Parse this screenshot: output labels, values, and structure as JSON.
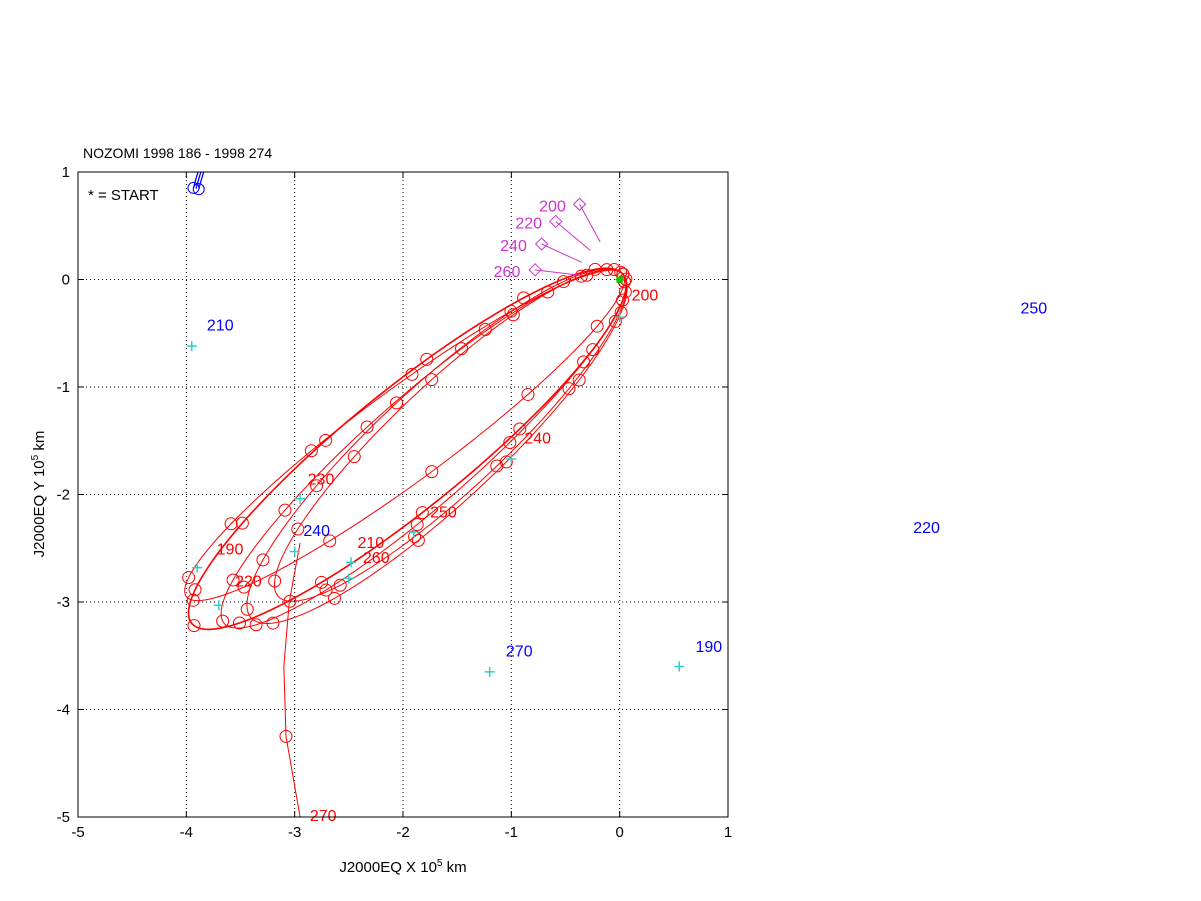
{
  "chart_data": {
    "type": "line",
    "title": "NOZOMI 1998 186 - 1998 274",
    "legend_note": "* = START",
    "xlabel": {
      "prefix": "J2000EQ X 10",
      "exp": "5",
      "suffix": " km"
    },
    "ylabel": {
      "prefix": "J2000EQ Y 10",
      "exp": "5",
      "suffix": " km"
    },
    "xlim": [
      -5,
      1
    ],
    "ylim": [
      -5,
      1
    ],
    "xticks": [
      -5,
      -4,
      -3,
      -2,
      -1,
      0,
      1
    ],
    "yticks": [
      -5,
      -4,
      -3,
      -2,
      -1,
      0,
      1
    ],
    "grid": true,
    "colors": {
      "spacecraft": "#ff0000",
      "moon": "#0000ff",
      "sun_dir": "#cc33cc",
      "marker": "#33cccc",
      "start": "#00cc00"
    },
    "moon_orbit": {
      "center": [
        -0.15,
        -0.05
      ],
      "radius_x": 3.85,
      "radius_y": 3.68,
      "start_deg": 166,
      "end_deg": -20,
      "laps": 3
    },
    "spacecraft_orbits": [
      {
        "apogee": [
          -4.0,
          -2.95
        ],
        "semi_minor": 0.42
      },
      {
        "apogee": [
          -3.95,
          -3.2
        ],
        "semi_minor": 0.55
      },
      {
        "apogee": [
          -3.65,
          -3.2
        ],
        "semi_minor": 0.5
      },
      {
        "apogee": [
          -3.4,
          -3.15
        ],
        "semi_minor": 0.55
      },
      {
        "apogee": [
          -3.15,
          -2.95
        ],
        "semi_minor": 0.5
      }
    ],
    "perigee": [
      0.03,
      0.05
    ],
    "escape_path": {
      "x": [
        -2.95,
        -3.05,
        -3.1,
        -3.08,
        -2.95
      ],
      "y": [
        -2.45,
        -3.0,
        -3.6,
        -4.25,
        -5.0
      ]
    },
    "cyan_markers": [
      [
        -3.9,
        -2.68
      ],
      [
        -3.7,
        -3.03
      ],
      [
        -2.95,
        -2.04
      ],
      [
        -3.0,
        -2.53
      ],
      [
        -2.48,
        -2.63
      ],
      [
        -2.5,
        -2.78
      ],
      [
        -1.9,
        -2.35
      ],
      [
        -1.0,
        -1.67
      ],
      [
        -1.2,
        -3.65
      ],
      [
        0.55,
        -3.6
      ],
      [
        -3.95,
        -0.62
      ],
      [
        0.0,
        -0.35
      ]
    ],
    "spacecraft_labels": [
      {
        "text": "200",
        "x": 0.11,
        "y": -0.14
      },
      {
        "text": "240",
        "x": -0.88,
        "y": -1.47
      },
      {
        "text": "230",
        "x": -2.88,
        "y": -1.85
      },
      {
        "text": "250",
        "x": -1.75,
        "y": -2.16
      },
      {
        "text": "210",
        "x": -2.42,
        "y": -2.44
      },
      {
        "text": "260",
        "x": -2.37,
        "y": -2.58
      },
      {
        "text": "190",
        "x": -3.72,
        "y": -2.5
      },
      {
        "text": "220",
        "x": -3.55,
        "y": -2.8
      },
      {
        "text": "270",
        "x": -2.86,
        "y": -4.98
      }
    ],
    "moon_labels": [
      {
        "text": "210",
        "x": -3.81,
        "y": -0.42
      },
      {
        "text": "240",
        "x": -2.92,
        "y": -2.33
      },
      {
        "text": "270",
        "x": -1.05,
        "y": -3.45
      },
      {
        "text": "190",
        "x": 0.7,
        "y": -3.41
      },
      {
        "text": "250",
        "x": 3.7,
        "y": -0.26
      },
      {
        "text": "220",
        "x": 2.71,
        "y": -2.3
      }
    ],
    "sun_direction_labels": [
      {
        "text": "200",
        "tx": -0.62,
        "ty": 0.69,
        "dx": -0.37,
        "dy": 0.7,
        "ex": -0.18,
        "ey": 0.35
      },
      {
        "text": "220",
        "tx": -0.84,
        "ty": 0.53,
        "dx": -0.59,
        "dy": 0.54,
        "ex": -0.27,
        "ey": 0.27
      },
      {
        "text": "240",
        "tx": -0.98,
        "ty": 0.32,
        "dx": -0.72,
        "dy": 0.33,
        "ex": -0.35,
        "ey": 0.16
      },
      {
        "text": "260",
        "tx": -1.04,
        "ty": 0.08,
        "dx": -0.78,
        "dy": 0.09,
        "ex": -0.37,
        "ey": 0.04
      }
    ]
  }
}
